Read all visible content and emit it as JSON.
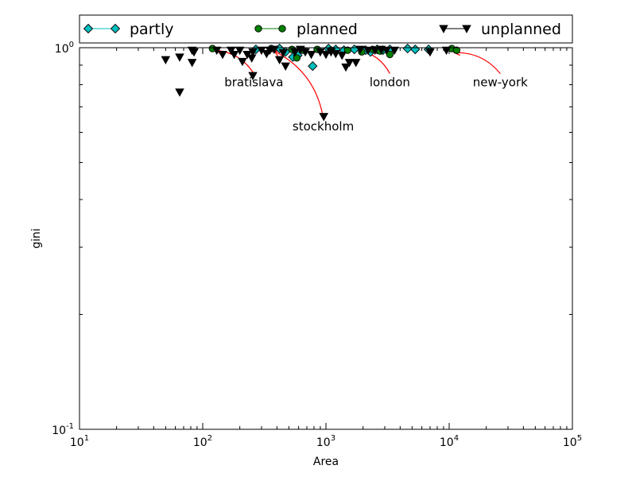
{
  "chart_data": {
    "type": "scatter",
    "xlabel": "Area",
    "ylabel": "gini",
    "xscale": "log",
    "yscale": "log",
    "xlim": [
      10,
      100000
    ],
    "ylim": [
      0.1,
      1.0
    ],
    "x_ticks": [
      {
        "value": 10,
        "base": "10",
        "exp": "1"
      },
      {
        "value": 100,
        "base": "10",
        "exp": "2"
      },
      {
        "value": 1000,
        "base": "10",
        "exp": "3"
      },
      {
        "value": 10000,
        "base": "10",
        "exp": "4"
      },
      {
        "value": 100000,
        "base": "10",
        "exp": "5"
      }
    ],
    "y_ticks": [
      {
        "value": 0.1,
        "base": "10",
        "exp": "-1"
      },
      {
        "value": 1.0,
        "base": "10",
        "exp": "0"
      }
    ],
    "legend_position": "top",
    "grid": false,
    "series": [
      {
        "name": "partly",
        "marker": "diamond",
        "color": "#00bfbf",
        "points": [
          [
            270,
            0.99
          ],
          [
            420,
            0.995
          ],
          [
            470,
            0.975
          ],
          [
            540,
            0.945
          ],
          [
            590,
            0.955
          ],
          [
            780,
            0.895
          ],
          [
            1050,
            0.995
          ],
          [
            1200,
            0.99
          ],
          [
            1400,
            0.985
          ],
          [
            1700,
            0.99
          ],
          [
            2100,
            0.985
          ],
          [
            2300,
            0.975
          ],
          [
            2600,
            0.99
          ],
          [
            2900,
            0.985
          ],
          [
            3300,
            0.99
          ],
          [
            4600,
            0.995
          ],
          [
            5300,
            0.99
          ],
          [
            6800,
            0.99
          ]
        ]
      },
      {
        "name": "planned",
        "marker": "circle",
        "color": "#008000",
        "points": [
          [
            120,
            0.995
          ],
          [
            360,
            0.995
          ],
          [
            530,
            0.99
          ],
          [
            580,
            0.94
          ],
          [
            650,
            0.985
          ],
          [
            850,
            0.99
          ],
          [
            1100,
            0.985
          ],
          [
            1500,
            0.985
          ],
          [
            1950,
            0.975
          ],
          [
            2400,
            0.99
          ],
          [
            2750,
            0.98
          ],
          [
            3300,
            0.96
          ],
          [
            10500,
            0.995
          ],
          [
            11500,
            0.985
          ]
        ]
      },
      {
        "name": "unplanned",
        "marker": "triangle-down",
        "color": "#000000",
        "points": [
          [
            50,
            0.93
          ],
          [
            65,
            0.945
          ],
          [
            65,
            0.765
          ],
          [
            82,
            0.915
          ],
          [
            82,
            0.985
          ],
          [
            85,
            0.975
          ],
          [
            130,
            0.985
          ],
          [
            145,
            0.96
          ],
          [
            170,
            0.985
          ],
          [
            180,
            0.96
          ],
          [
            200,
            0.985
          ],
          [
            210,
            0.92
          ],
          [
            230,
            0.96
          ],
          [
            250,
            0.94
          ],
          [
            255,
            0.975
          ],
          [
            255,
            0.845
          ],
          [
            300,
            0.985
          ],
          [
            330,
            0.965
          ],
          [
            350,
            0.985
          ],
          [
            380,
            0.99
          ],
          [
            420,
            0.93
          ],
          [
            450,
            0.97
          ],
          [
            470,
            0.895
          ],
          [
            560,
            0.975
          ],
          [
            620,
            0.99
          ],
          [
            680,
            0.975
          ],
          [
            760,
            0.96
          ],
          [
            900,
            0.975
          ],
          [
            960,
            0.66
          ],
          [
            1000,
            0.96
          ],
          [
            1100,
            0.975
          ],
          [
            1200,
            0.965
          ],
          [
            1350,
            0.955
          ],
          [
            1450,
            0.89
          ],
          [
            1550,
            0.915
          ],
          [
            1750,
            0.915
          ],
          [
            1900,
            0.99
          ],
          [
            2200,
            0.985
          ],
          [
            2500,
            0.985
          ],
          [
            2800,
            0.99
          ],
          [
            3100,
            0.985
          ],
          [
            3600,
            0.985
          ],
          [
            7000,
            0.975
          ],
          [
            9500,
            0.985
          ]
        ]
      }
    ],
    "annotations": [
      {
        "text": "bratislava",
        "point": [
          125,
          0.985
        ],
        "text_anchor": [
          260,
          0.855
        ]
      },
      {
        "text": "stockholm",
        "point": [
          380,
          0.98
        ],
        "text_anchor": [
          950,
          0.655
        ]
      },
      {
        "text": "london",
        "point": [
          1800,
          0.985
        ],
        "text_anchor": [
          3300,
          0.855
        ]
      },
      {
        "text": "new-york",
        "point": [
          11000,
          0.97
        ],
        "text_anchor": [
          26000,
          0.855
        ]
      }
    ]
  }
}
